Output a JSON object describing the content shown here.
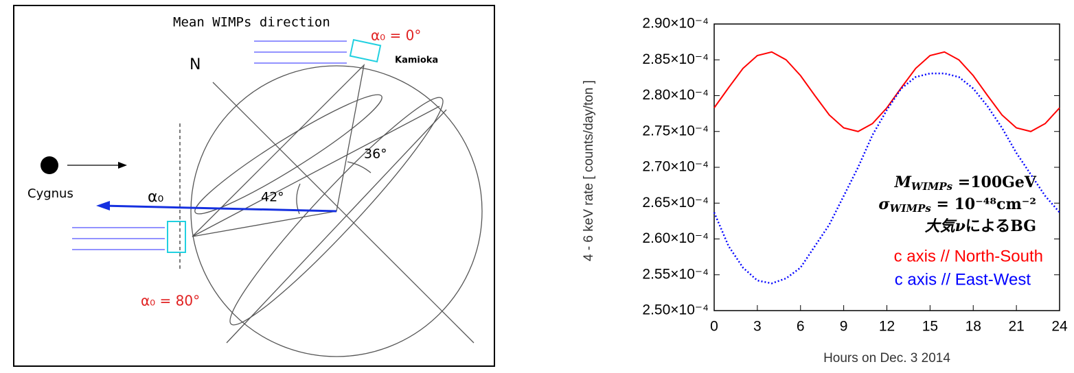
{
  "diagram": {
    "title": "Mean WIMPs direction",
    "alpha_top": "α₀ = 0°",
    "kamioka": "Kamioka",
    "north": "N",
    "cygnus": "Cygnus",
    "alpha": "α₀",
    "angle_42": "42°",
    "angle_36": "36°",
    "alpha_left": "α₀ = 80°"
  },
  "chart_data": {
    "type": "line",
    "xlabel": "Hours on  Dec. 3 2014",
    "ylabel": "4 - 6 keV rate [ counts/day/ton ]",
    "x": [
      0,
      1,
      2,
      3,
      4,
      5,
      6,
      7,
      8,
      9,
      10,
      11,
      12,
      13,
      14,
      15,
      16,
      17,
      18,
      19,
      20,
      21,
      22,
      23,
      24
    ],
    "series": [
      {
        "name": "c axis // North-South",
        "color": "#ff0000",
        "style": "solid",
        "values": [
          0.0002783,
          0.0002811,
          0.0002838,
          0.0002856,
          0.0002861,
          0.000285,
          0.0002828,
          0.00028,
          0.0002773,
          0.0002755,
          0.000275,
          0.0002761,
          0.0002783,
          0.0002811,
          0.0002838,
          0.0002856,
          0.0002861,
          0.000285,
          0.0002828,
          0.00028,
          0.0002773,
          0.0002755,
          0.000275,
          0.0002761,
          0.0002783
        ]
      },
      {
        "name": "c axis // East-West",
        "color": "#0000ff",
        "style": "dotted",
        "values": [
          0.0002637,
          0.000259,
          0.000256,
          0.0002542,
          0.0002538,
          0.0002545,
          0.000256,
          0.000259,
          0.000262,
          0.000266,
          0.00027,
          0.0002745,
          0.000278,
          0.000281,
          0.0002826,
          0.0002831,
          0.0002831,
          0.0002826,
          0.000281,
          0.0002785,
          0.0002755,
          0.000272,
          0.000269,
          0.000266,
          0.0002637
        ]
      }
    ],
    "xlim": [
      0,
      24
    ],
    "xticks": [
      0,
      3,
      6,
      9,
      12,
      15,
      18,
      21,
      24
    ],
    "ylim": [
      0.00025,
      0.00029
    ],
    "yticks": [
      {
        "value": 0.00025,
        "label": "2.50×10⁻⁴"
      },
      {
        "value": 0.000255,
        "label": "2.55×10⁻⁴"
      },
      {
        "value": 0.00026,
        "label": "2.60×10⁻⁴"
      },
      {
        "value": 0.000265,
        "label": "2.65×10⁻⁴"
      },
      {
        "value": 0.00027,
        "label": "2.70×10⁻⁴"
      },
      {
        "value": 0.000275,
        "label": "2.75×10⁻⁴"
      },
      {
        "value": 0.00028,
        "label": "2.80×10⁻⁴"
      },
      {
        "value": 0.000285,
        "label": "2.85×10⁻⁴"
      },
      {
        "value": 0.00029,
        "label": "2.90×10⁻⁴"
      }
    ],
    "annotations": [
      {
        "main": "M",
        "sub": "WIMPs",
        "rest": " =100GeV"
      },
      {
        "main": "σ",
        "sub": "WIMPs",
        "rest": " = 10⁻⁴⁸cm⁻²"
      },
      {
        "main": "大気ν",
        "sub": "",
        "rest": "によるBG"
      }
    ],
    "legend": "lower right"
  }
}
